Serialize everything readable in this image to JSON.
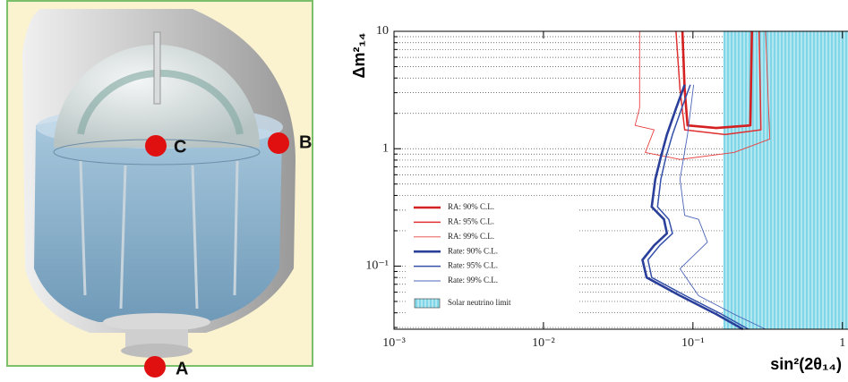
{
  "illustration": {
    "labels": [
      "A",
      "B",
      "C"
    ]
  },
  "chart_data": {
    "type": "line",
    "xlabel": "sin²(2θ₁₄)",
    "ylabel": "Δm²₁₄",
    "xscale": "log",
    "yscale": "log",
    "grid": true,
    "xlim": [
      0.001,
      1.09
    ],
    "ylim": [
      0.029,
      10
    ],
    "xticks": [
      {
        "value": 0.001,
        "label": "10⁻³"
      },
      {
        "value": 0.01,
        "label": "10⁻²"
      },
      {
        "value": 0.1,
        "label": "10⁻¹"
      },
      1
    ],
    "yticks": [
      {
        "value": 0.1,
        "label": "10⁻¹"
      },
      1,
      10
    ],
    "y_minor_ticks": [
      0.03,
      0.04,
      0.05,
      0.06,
      0.07,
      0.08,
      0.09,
      0.2,
      0.3,
      0.4,
      0.5,
      0.6,
      0.7,
      0.8,
      0.9,
      2,
      3,
      4,
      5,
      6,
      7,
      8,
      9
    ],
    "legend": "lower left",
    "series": [
      {
        "name": "RA: 90% C.L.",
        "color": "#d42020",
        "width": 2.6,
        "x": [
          0.085,
          0.088,
          0.092,
          0.143,
          0.242,
          0.248
        ],
        "y": [
          10,
          3.2,
          1.58,
          1.5,
          1.58,
          10
        ]
      },
      {
        "name": "RA: 95% C.L.",
        "color": "#e03030",
        "width": 1.5,
        "x": [
          0.077,
          0.082,
          0.088,
          0.164,
          0.285,
          0.277
        ],
        "y": [
          10,
          3.2,
          1.45,
          1.32,
          1.45,
          10
        ]
      },
      {
        "name": "RA: 99% C.L.",
        "color": "#e84040",
        "width": 0.9,
        "x": [
          0.044,
          0.044,
          0.041,
          0.055,
          0.048,
          0.082,
          0.188,
          0.327,
          0.306
        ],
        "y": [
          10,
          2.24,
          1.58,
          1.45,
          0.93,
          0.81,
          0.93,
          1.21,
          10
        ]
      },
      {
        "name": "Rate: 90% C.L.",
        "color": "#2a3f9a",
        "width": 2.6,
        "x": [
          0.088,
          0.077,
          0.067,
          0.061,
          0.056,
          0.053,
          0.064,
          0.067,
          0.055,
          0.046,
          0.049,
          0.082,
          0.143,
          0.216
        ],
        "y": [
          3.5,
          2.2,
          1.32,
          0.85,
          0.55,
          0.32,
          0.25,
          0.19,
          0.15,
          0.113,
          0.08,
          0.056,
          0.039,
          0.029
        ]
      },
      {
        "name": "Rate: 95% C.L.",
        "color": "#3450a8",
        "width": 1.5,
        "x": [
          0.096,
          0.084,
          0.073,
          0.066,
          0.061,
          0.058,
          0.069,
          0.073,
          0.06,
          0.05,
          0.053,
          0.089,
          0.155,
          0.235
        ],
        "y": [
          3.5,
          2.2,
          1.32,
          0.85,
          0.55,
          0.32,
          0.25,
          0.19,
          0.15,
          0.113,
          0.08,
          0.056,
          0.039,
          0.029
        ]
      },
      {
        "name": "Rate: 99% C.L.",
        "color": "#4a64b8",
        "width": 0.9,
        "x": [
          0.101,
          0.092,
          0.082,
          0.088,
          0.109,
          0.125,
          0.082,
          0.109,
          0.188,
          0.306
        ],
        "y": [
          3.5,
          1.32,
          0.55,
          0.27,
          0.25,
          0.16,
          0.095,
          0.056,
          0.039,
          0.029
        ]
      }
    ],
    "shaded_region": {
      "name": "Solar neutrino limit",
      "color": "#7fd6e6",
      "x": [
        0.16,
        1.09
      ]
    }
  }
}
